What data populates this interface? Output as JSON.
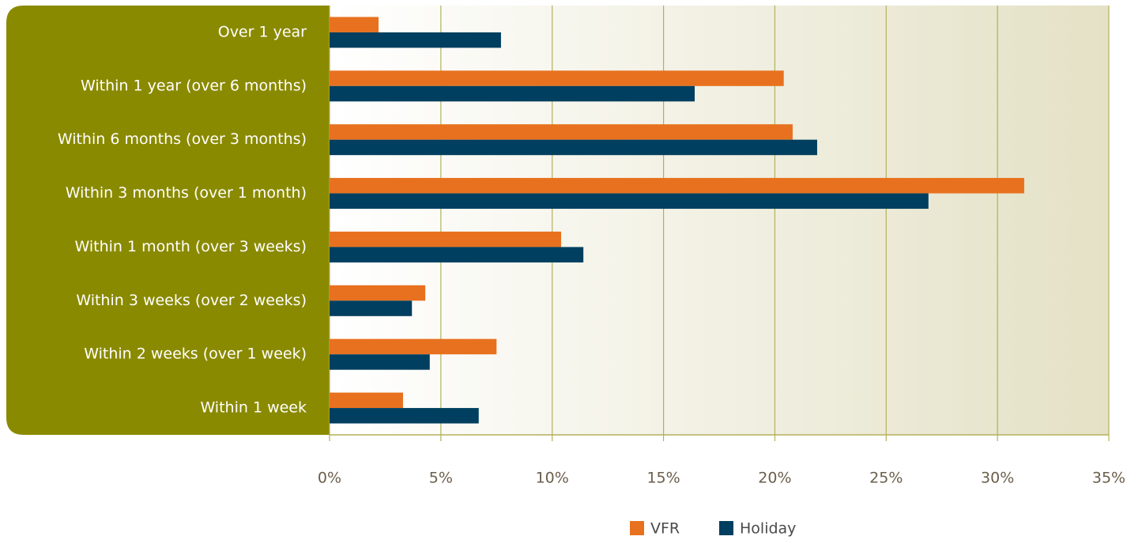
{
  "chart_data": {
    "type": "bar",
    "orientation": "horizontal",
    "categories": [
      "Over 1 year",
      "Within 1 year (over 6 months)",
      "Within 6 months (over 3 months)",
      "Within 3 months (over 1 month)",
      "Within 1 month (over 3 weeks)",
      "Within 3 weeks (over 2 weeks)",
      "Within 2 weeks (over 1 week)",
      "Within 1 week"
    ],
    "series": [
      {
        "name": "VFR",
        "color": "#e8711f",
        "values": [
          2.2,
          20.4,
          20.8,
          31.2,
          10.4,
          4.3,
          7.5,
          3.3
        ]
      },
      {
        "name": "Holiday",
        "color": "#003f5f",
        "values": [
          7.7,
          16.4,
          21.9,
          26.9,
          11.4,
          3.7,
          4.5,
          6.7
        ]
      }
    ],
    "xlim": [
      0,
      35
    ],
    "xticks": [
      {
        "value": 0,
        "label": "0%"
      },
      {
        "value": 5,
        "label": "5%"
      },
      {
        "value": 10,
        "label": "10%"
      },
      {
        "value": 15,
        "label": "15%"
      },
      {
        "value": 20,
        "label": "20%"
      },
      {
        "value": 25,
        "label": "25%"
      },
      {
        "value": 30,
        "label": "30%"
      },
      {
        "value": 35,
        "label": "35%"
      }
    ],
    "grid": true,
    "legend": "bottom"
  }
}
